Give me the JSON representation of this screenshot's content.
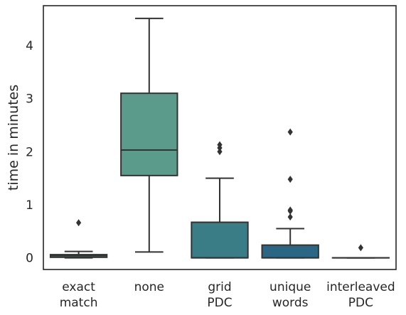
{
  "chart_data": {
    "type": "box",
    "title": "",
    "xlabel": "",
    "ylabel": "time in minutes",
    "ylim": [
      -0.22,
      4.75
    ],
    "yticks": [
      0,
      1,
      2,
      3,
      4
    ],
    "grid": false,
    "categories": [
      {
        "lines": [
          "exact",
          "match"
        ],
        "color": "#5a9e88",
        "q1": 0.01,
        "median": 0.04,
        "q3": 0.06,
        "whisker_low": 0.0,
        "whisker_high": 0.12,
        "outliers": [
          0.66
        ]
      },
      {
        "lines": [
          "none"
        ],
        "color": "#5b9b8c",
        "q1": 1.55,
        "median": 2.03,
        "q3": 3.1,
        "whisker_low": 0.11,
        "whisker_high": 4.51,
        "outliers": []
      },
      {
        "lines": [
          "grid",
          "PDC"
        ],
        "color": "#3a7d86",
        "q1": 0.0,
        "median": 0.0,
        "q3": 0.67,
        "whisker_low": 0.0,
        "whisker_high": 1.5,
        "outliers": [
          2.0,
          2.07,
          2.13
        ]
      },
      {
        "lines": [
          "unique",
          "words"
        ],
        "color": "#2b6684",
        "q1": 0.0,
        "median": 0.0,
        "q3": 0.24,
        "whisker_low": 0.0,
        "whisker_high": 0.55,
        "outliers": [
          0.77,
          0.88,
          0.9,
          1.48,
          2.37
        ]
      },
      {
        "lines": [
          "interleaved",
          "PDC"
        ],
        "color": "#234f7a",
        "q1": 0.0,
        "median": 0.0,
        "q3": 0.0,
        "whisker_low": 0.0,
        "whisker_high": 0.0,
        "outliers": [
          0.19
        ]
      }
    ]
  }
}
